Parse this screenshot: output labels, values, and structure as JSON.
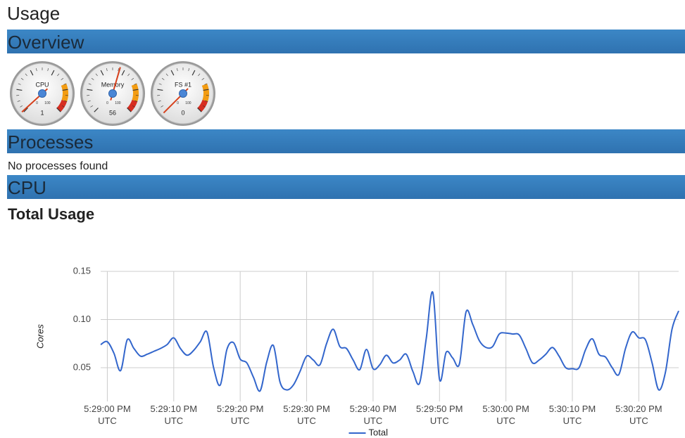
{
  "page": {
    "title": "Usage",
    "sections": [
      "Overview",
      "Processes",
      "CPU"
    ],
    "processes_message": "No processes found",
    "gauge_scale": {
      "min": 0,
      "max": 100
    },
    "gauges": [
      {
        "label": "CPU",
        "value": 1
      },
      {
        "label": "Memory",
        "value": 56
      },
      {
        "label": "FS #1",
        "value": 0
      }
    ]
  },
  "chart_data": {
    "type": "line",
    "title": "Total Usage",
    "y_label": "Cores",
    "grid": true,
    "legend": "bottom",
    "x": [
      "5:28:59 PM",
      "5:29:00 PM",
      "5:29:01 PM",
      "5:29:02 PM",
      "5:29:03 PM",
      "5:29:04 PM",
      "5:29:05 PM",
      "5:29:06 PM",
      "5:29:07 PM",
      "5:29:08 PM",
      "5:29:09 PM",
      "5:29:10 PM",
      "5:29:11 PM",
      "5:29:12 PM",
      "5:29:13 PM",
      "5:29:14 PM",
      "5:29:15 PM",
      "5:29:16 PM",
      "5:29:17 PM",
      "5:29:18 PM",
      "5:29:19 PM",
      "5:29:20 PM",
      "5:29:21 PM",
      "5:29:22 PM",
      "5:29:23 PM",
      "5:29:24 PM",
      "5:29:25 PM",
      "5:29:26 PM",
      "5:29:27 PM",
      "5:29:28 PM",
      "5:29:29 PM",
      "5:29:30 PM",
      "5:29:31 PM",
      "5:29:32 PM",
      "5:29:33 PM",
      "5:29:34 PM",
      "5:29:35 PM",
      "5:29:36 PM",
      "5:29:37 PM",
      "5:29:38 PM",
      "5:29:39 PM",
      "5:29:40 PM",
      "5:29:41 PM",
      "5:29:42 PM",
      "5:29:43 PM",
      "5:29:44 PM",
      "5:29:45 PM",
      "5:29:46 PM",
      "5:29:47 PM",
      "5:29:48 PM",
      "5:29:49 PM",
      "5:29:50 PM",
      "5:29:51 PM",
      "5:29:52 PM",
      "5:29:53 PM",
      "5:29:54 PM",
      "5:29:55 PM",
      "5:29:56 PM",
      "5:29:57 PM",
      "5:29:58 PM",
      "5:29:59 PM",
      "5:30:00 PM",
      "5:30:01 PM",
      "5:30:02 PM",
      "5:30:03 PM",
      "5:30:04 PM",
      "5:30:05 PM",
      "5:30:06 PM",
      "5:30:07 PM",
      "5:30:08 PM",
      "5:30:09 PM",
      "5:30:10 PM",
      "5:30:11 PM",
      "5:30:12 PM",
      "5:30:13 PM",
      "5:30:14 PM",
      "5:30:15 PM",
      "5:30:16 PM",
      "5:30:17 PM",
      "5:30:18 PM",
      "5:30:19 PM",
      "5:30:20 PM",
      "5:30:21 PM",
      "5:30:22 PM",
      "5:30:23 PM",
      "5:30:24 PM",
      "5:30:25 PM",
      "5:30:26 PM"
    ],
    "series": [
      {
        "name": "Total",
        "color": "#3366cc",
        "values": [
          0.074,
          0.077,
          0.065,
          0.047,
          0.079,
          0.07,
          0.062,
          0.064,
          0.067,
          0.07,
          0.074,
          0.081,
          0.07,
          0.063,
          0.068,
          0.077,
          0.087,
          0.05,
          0.032,
          0.069,
          0.076,
          0.059,
          0.055,
          0.04,
          0.026,
          0.056,
          0.073,
          0.035,
          0.027,
          0.032,
          0.046,
          0.062,
          0.058,
          0.053,
          0.075,
          0.09,
          0.072,
          0.07,
          0.058,
          0.048,
          0.069,
          0.049,
          0.053,
          0.063,
          0.055,
          0.058,
          0.064,
          0.046,
          0.034,
          0.08,
          0.128,
          0.038,
          0.066,
          0.06,
          0.054,
          0.108,
          0.095,
          0.078,
          0.071,
          0.072,
          0.085,
          0.086,
          0.085,
          0.084,
          0.07,
          0.055,
          0.058,
          0.064,
          0.071,
          0.062,
          0.05,
          0.049,
          0.05,
          0.069,
          0.08,
          0.064,
          0.061,
          0.05,
          0.043,
          0.07,
          0.087,
          0.081,
          0.079,
          0.055,
          0.027,
          0.045,
          0.09,
          0.109
        ]
      }
    ],
    "xlim": [
      "5:28:59 PM",
      "5:30:26 PM"
    ],
    "xticks": [
      {
        "value": "5:29:00 PM",
        "label": "5:29:00 PM UTC"
      },
      {
        "value": "5:29:10 PM",
        "label": "5:29:10 PM UTC"
      },
      {
        "value": "5:29:20 PM",
        "label": "5:29:20 PM UTC"
      },
      {
        "value": "5:29:30 PM",
        "label": "5:29:30 PM UTC"
      },
      {
        "value": "5:29:40 PM",
        "label": "5:29:40 PM UTC"
      },
      {
        "value": "5:29:50 PM",
        "label": "5:29:50 PM UTC"
      },
      {
        "value": "5:30:00 PM",
        "label": "5:30:00 PM UTC"
      },
      {
        "value": "5:30:10 PM",
        "label": "5:30:10 PM UTC"
      },
      {
        "value": "5:30:20 PM",
        "label": "5:30:20 PM UTC"
      }
    ],
    "ylim": [
      0.015,
      0.15
    ],
    "yticks": [
      0.05,
      {
        "value": 0.1,
        "label": "0.10"
      },
      0.15
    ]
  }
}
